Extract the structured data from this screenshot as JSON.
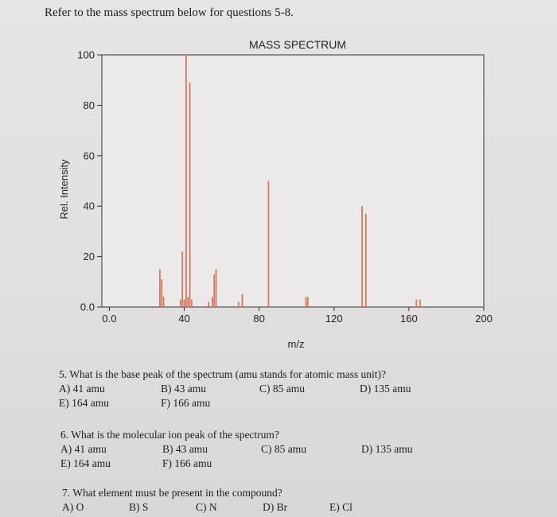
{
  "intro": "Refer to the mass spectrum below for questions 5-8.",
  "chart_data": {
    "type": "bar",
    "title": "MASS SPECTRUM",
    "xlabel": "m/z",
    "ylabel": "Rel. Intensity",
    "xlim": [
      -4,
      200
    ],
    "ylim": [
      0,
      100
    ],
    "xticks": [
      {
        "value": 0,
        "label": "0.0"
      },
      {
        "value": 40,
        "label": "40"
      },
      {
        "value": 80,
        "label": "80"
      },
      {
        "value": 120,
        "label": "120"
      },
      {
        "value": 160,
        "label": "160"
      },
      {
        "value": 200,
        "label": "200"
      }
    ],
    "yticks": [
      {
        "value": 0,
        "label": "0.0"
      },
      {
        "value": 20,
        "label": "20"
      },
      {
        "value": 40,
        "label": "40"
      },
      {
        "value": 60,
        "label": "60"
      },
      {
        "value": 80,
        "label": "80"
      },
      {
        "value": 100,
        "label": "100"
      }
    ],
    "color": "#d07a60",
    "grid": false,
    "peaks": [
      {
        "x": 27,
        "y": 15
      },
      {
        "x": 28,
        "y": 11
      },
      {
        "x": 29,
        "y": 4
      },
      {
        "x": 38,
        "y": 3
      },
      {
        "x": 39,
        "y": 22
      },
      {
        "x": 40,
        "y": 3
      },
      {
        "x": 41,
        "y": 100
      },
      {
        "x": 42,
        "y": 4
      },
      {
        "x": 43,
        "y": 89
      },
      {
        "x": 44,
        "y": 3
      },
      {
        "x": 53,
        "y": 2
      },
      {
        "x": 55,
        "y": 4
      },
      {
        "x": 56,
        "y": 13
      },
      {
        "x": 57,
        "y": 15
      },
      {
        "x": 69,
        "y": 2
      },
      {
        "x": 71,
        "y": 5
      },
      {
        "x": 85,
        "y": 50
      },
      {
        "x": 105,
        "y": 4
      },
      {
        "x": 106,
        "y": 4
      },
      {
        "x": 135,
        "y": 40
      },
      {
        "x": 137,
        "y": 37
      },
      {
        "x": 164,
        "y": 3
      },
      {
        "x": 166,
        "y": 3
      }
    ]
  },
  "questions": [
    {
      "text": "5. What is the base peak of the spectrum (amu stands for atomic mass unit)?",
      "rows": [
        [
          "A) 41 amu",
          "B) 43 amu",
          "C) 85 amu",
          "D) 135 amu"
        ],
        [
          "E) 164 amu",
          "F) 166 amu"
        ]
      ]
    },
    {
      "text": "6. What is the molecular ion peak of the spectrum?",
      "rows": [
        [
          "A) 41 amu",
          "B) 43 amu",
          "C) 85 amu",
          "D) 135 amu"
        ],
        [
          "E) 164 amu",
          "F) 166 amu"
        ]
      ]
    },
    {
      "text": "7. What element must be present in the compound?",
      "rows": [
        [
          "A) O",
          "B) S",
          "C) N",
          "D) Br",
          "E) Cl"
        ]
      ]
    }
  ]
}
